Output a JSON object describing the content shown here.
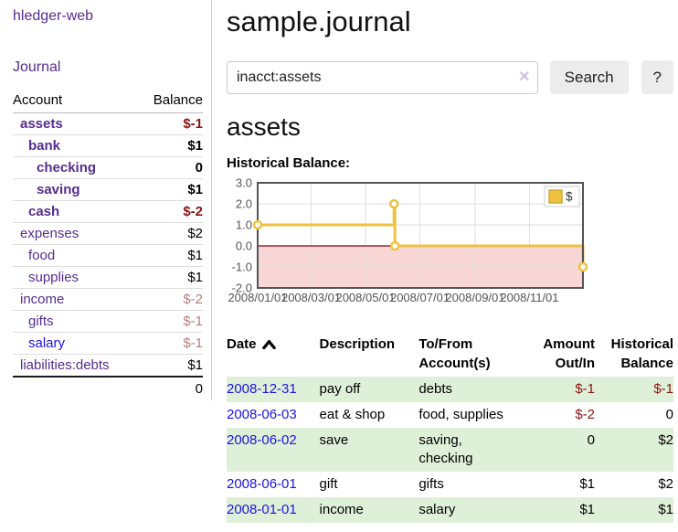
{
  "colors": {
    "link_purple": "#552d90",
    "link_blue": "#1d14e0",
    "negative_red": "#8b1414",
    "negative_muted": "#b87d7d",
    "row_stripe_green": "#dff0d8",
    "chart_line_yellow": "#edc240",
    "chart_negative_fill": "#f9d6d6",
    "chart_zero_line": "#8b0000",
    "chart_border": "#545454"
  },
  "sidebar": {
    "brand": "hledger-web",
    "journal_label": "Journal",
    "accounts": {
      "header_account": "Account",
      "header_balance": "Balance",
      "rows": [
        {
          "name": "assets",
          "balance": "$-1",
          "level": 1,
          "bold": true,
          "balance_style": "neg",
          "link_style": "purple"
        },
        {
          "name": "bank",
          "balance": "$1",
          "level": 2,
          "bold": true,
          "balance_style": "pos",
          "link_style": "purple"
        },
        {
          "name": "checking",
          "balance": "0",
          "level": 3,
          "bold": true,
          "balance_style": "pos",
          "link_style": "purple"
        },
        {
          "name": "saving",
          "balance": "$1",
          "level": 3,
          "bold": true,
          "balance_style": "pos",
          "link_style": "purple"
        },
        {
          "name": "cash",
          "balance": "$-2",
          "level": 2,
          "bold": true,
          "balance_style": "neg",
          "link_style": "purple"
        },
        {
          "name": "expenses",
          "balance": "$2",
          "level": 1,
          "bold": false,
          "balance_style": "pos",
          "link_style": "purple"
        },
        {
          "name": "food",
          "balance": "$1",
          "level": 2,
          "bold": false,
          "balance_style": "pos",
          "link_style": "purple"
        },
        {
          "name": "supplies",
          "balance": "$1",
          "level": 2,
          "bold": false,
          "balance_style": "pos",
          "link_style": "purple"
        },
        {
          "name": "income",
          "balance": "$-2",
          "level": 1,
          "bold": false,
          "balance_style": "neg-muted",
          "link_style": "purple"
        },
        {
          "name": "gifts",
          "balance": "$-1",
          "level": 2,
          "bold": false,
          "balance_style": "neg-muted",
          "link_style": "purple"
        },
        {
          "name": "salary",
          "balance": "$-1",
          "level": 2,
          "bold": false,
          "balance_style": "neg-muted",
          "link_style": "blue"
        },
        {
          "name": "liabilities:debts",
          "balance": "$1",
          "level": 1,
          "bold": false,
          "balance_style": "pos",
          "link_style": "purple"
        }
      ],
      "total": "0"
    }
  },
  "main": {
    "title": "sample.journal",
    "search": {
      "value": "inacct:assets",
      "placeholder": "",
      "clear_icon": "×",
      "button_label": "Search",
      "help_label": "?"
    },
    "heading": "assets",
    "chart_label": "Historical Balance:"
  },
  "chart_data": {
    "type": "line",
    "title": "Historical Balance",
    "ylim": [
      -2,
      3
    ],
    "y_ticks": [
      "3.0",
      "2.0",
      "1.0",
      "0.0",
      "-1.0",
      "-2.0"
    ],
    "x_ticks": [
      "2008/01/01",
      "2008/03/01",
      "2008/05/01",
      "2008/07/01",
      "2008/09/01",
      "2008/11/01"
    ],
    "grid": true,
    "legend": {
      "label": "$",
      "position": "top-right"
    },
    "series": [
      {
        "name": "$",
        "step": true,
        "points": [
          [
            "2008-01-01",
            1
          ],
          [
            "2008-06-02",
            2
          ],
          [
            "2008-06-03",
            0
          ],
          [
            "2008-12-31",
            -1
          ]
        ]
      }
    ]
  },
  "register": {
    "headers": {
      "date": "Date",
      "sort_icon": "caret-up",
      "description": "Description",
      "tofrom": [
        "To/From",
        "Account(s)"
      ],
      "amount": [
        "Amount",
        "Out/In"
      ],
      "balance": [
        "Historical",
        "Balance"
      ]
    },
    "rows": [
      {
        "date": "2008-12-31",
        "description": "pay off",
        "accounts": [
          "debts"
        ],
        "amount": "$-1",
        "amount_style": "neg",
        "balance": "$-1",
        "balance_style": "neg",
        "shaded": true
      },
      {
        "date": "2008-06-03",
        "description": "eat & shop",
        "accounts": [
          "food, supplies"
        ],
        "amount": "$-2",
        "amount_style": "neg",
        "balance": "0",
        "balance_style": "pos",
        "shaded": false
      },
      {
        "date": "2008-06-02",
        "description": "save",
        "accounts": [
          "saving,",
          "checking"
        ],
        "amount": "0",
        "amount_style": "pos",
        "balance": "$2",
        "balance_style": "pos",
        "shaded": true
      },
      {
        "date": "2008-06-01",
        "description": "gift",
        "accounts": [
          "gifts"
        ],
        "amount": "$1",
        "amount_style": "pos",
        "balance": "$2",
        "balance_style": "pos",
        "shaded": false
      },
      {
        "date": "2008-01-01",
        "description": "income",
        "accounts": [
          "salary"
        ],
        "amount": "$1",
        "amount_style": "pos",
        "balance": "$1",
        "balance_style": "pos",
        "shaded": true
      }
    ]
  }
}
